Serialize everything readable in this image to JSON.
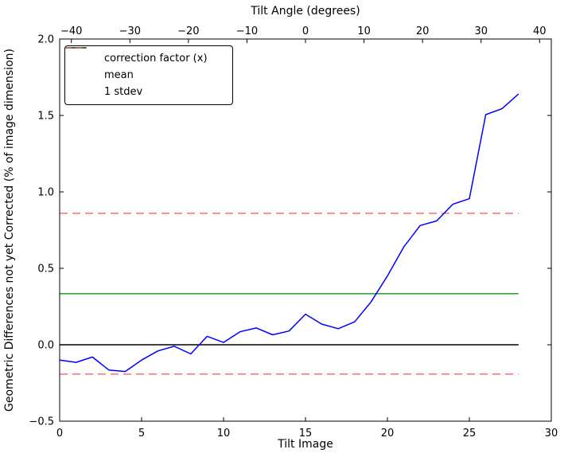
{
  "chart_data": {
    "type": "line",
    "title": "",
    "top_xlabel": "Tilt Angle (degrees)",
    "xlabel": "Tilt Image",
    "ylabel": "Geometric Differences not yet Corrected (% of image dimension)",
    "x_range": [
      0,
      30
    ],
    "y_range": [
      -0.5,
      2.0
    ],
    "top_x_range": [
      -42,
      42
    ],
    "x_tick_values": [
      0,
      5,
      10,
      15,
      20,
      25,
      30
    ],
    "x_tick_labels": [
      "0",
      "5",
      "10",
      "15",
      "20",
      "25",
      "30"
    ],
    "top_tick_values": [
      -40,
      -30,
      -20,
      -10,
      0,
      10,
      20,
      30,
      40
    ],
    "top_tick_labels": [
      "−40",
      "−30",
      "−20",
      "−10",
      "0",
      "10",
      "20",
      "30",
      "40"
    ],
    "y_tick_values": [
      -0.5,
      0.0,
      0.5,
      1.0,
      1.5,
      2.0
    ],
    "y_tick_labels": [
      "−0.5",
      "0.0",
      "0.5",
      "1.0",
      "1.5",
      "2.0"
    ],
    "grid": false,
    "legend_position": "upper-left",
    "series": [
      {
        "name": "correction factor (x)",
        "color": "#0000ff",
        "dash": false,
        "x": [
          0,
          1,
          2,
          3,
          4,
          5,
          6,
          7,
          8,
          9,
          10,
          11,
          12,
          13,
          14,
          15,
          16,
          17,
          18,
          19,
          20,
          21,
          22,
          23,
          24,
          25,
          26,
          27,
          28
        ],
        "y": [
          -0.1,
          -0.115,
          -0.08,
          -0.165,
          -0.175,
          -0.1,
          -0.04,
          -0.01,
          -0.06,
          0.055,
          0.015,
          0.085,
          0.11,
          0.065,
          0.09,
          0.2,
          0.135,
          0.105,
          0.15,
          0.28,
          0.45,
          0.64,
          0.78,
          0.81,
          0.92,
          0.955,
          1.505,
          1.545,
          1.64
        ]
      }
    ],
    "hlines": [
      {
        "name": "zero-line",
        "y": 0.0,
        "color": "#000000",
        "dash": false,
        "width": 1.6,
        "x_span": [
          0,
          28
        ]
      },
      {
        "name": "mean-line",
        "y": 0.334,
        "color": "#008000",
        "dash": false,
        "width": 1.3,
        "x_span": [
          0,
          28
        ]
      },
      {
        "name": "stdev-upper-line",
        "y": 0.86,
        "color": "#ff5555",
        "dash": true,
        "width": 1.3,
        "x_span": [
          0,
          28
        ]
      },
      {
        "name": "stdev-lower-line",
        "y": -0.192,
        "color": "#ff5555",
        "dash": true,
        "width": 1.3,
        "x_span": [
          0,
          28
        ]
      }
    ],
    "legend": {
      "items": [
        {
          "label": "correction factor (x)",
          "color": "#0000ff",
          "dash": false
        },
        {
          "label": "mean",
          "color": "#008000",
          "dash": false
        },
        {
          "label": "1 stdev",
          "color": "#ff5555",
          "dash": true
        }
      ]
    },
    "stats": {
      "mean": 0.334,
      "stdev": 0.526
    }
  }
}
